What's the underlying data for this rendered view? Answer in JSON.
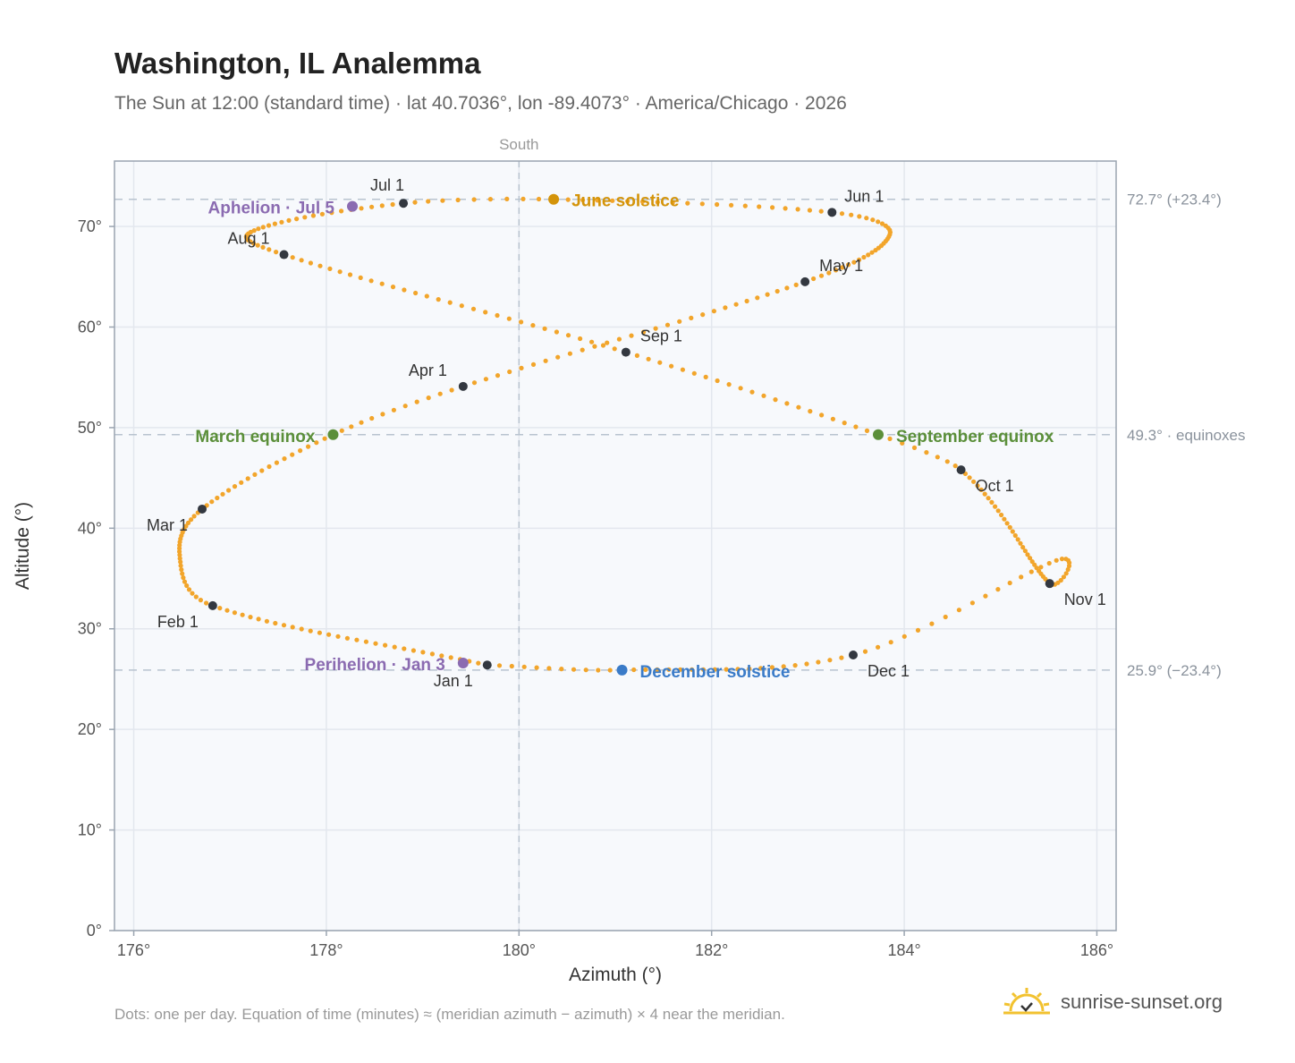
{
  "title": "Washington, IL Analemma",
  "subtitle": "The Sun at 12:00 (standard time) · lat 40.7036°, lon -89.4073° · America/Chicago · 2026",
  "footnote": "Dots: one per day. Equation of time (minutes) ≈ (meridian azimuth − azimuth) × 4 near the meridian.",
  "brand": "sunrise-sunset.org",
  "colors": {
    "path": "#f2a52b",
    "month": "#333840",
    "june": "#d4940a",
    "december": "#3a7bc8",
    "equinox": "#5b8f3a",
    "apsis": "#8b6bb1",
    "plot_bg": "#f7f9fc",
    "grid": "#e3e7ee",
    "ref": "#b8c3cf"
  },
  "chart_data": {
    "type": "scatter",
    "xlabel": "Azimuth (°)",
    "ylabel": "Altitude (°)",
    "xlim": [
      175.8,
      186.2
    ],
    "ylim": [
      0,
      76.5
    ],
    "xticks": [
      176,
      178,
      180,
      182,
      184,
      186
    ],
    "yticks": [
      0,
      10,
      20,
      30,
      40,
      50,
      60,
      70
    ],
    "xtick_labels": [
      "176°",
      "178°",
      "180°",
      "182°",
      "184°",
      "186°"
    ],
    "ytick_labels": [
      "0°",
      "10°",
      "20°",
      "30°",
      "40°",
      "50°",
      "60°",
      "70°"
    ],
    "meridian": {
      "azimuth": 180,
      "label": "South"
    },
    "reference_lines": [
      {
        "altitude": 72.7,
        "label": "72.7° (+23.4°)"
      },
      {
        "altitude": 49.3,
        "label": "49.3° · equinoxes"
      },
      {
        "altitude": 25.9,
        "label": "25.9° (−23.4°)"
      }
    ],
    "daily_path": {
      "description": "one point per day",
      "anchors": [
        [
          1,
          179.67,
          26.4
        ],
        [
          32,
          176.82,
          32.3
        ],
        [
          60,
          176.71,
          41.9
        ],
        [
          79,
          178.07,
          49.3
        ],
        [
          91,
          179.42,
          54.1
        ],
        [
          121,
          182.97,
          64.5
        ],
        [
          152,
          183.25,
          71.4
        ],
        [
          172,
          180.36,
          72.7
        ],
        [
          182,
          178.8,
          72.3
        ],
        [
          213,
          177.56,
          67.2
        ],
        [
          244,
          181.11,
          57.5
        ],
        [
          266,
          183.73,
          49.3
        ],
        [
          274,
          184.59,
          45.8
        ],
        [
          305,
          185.51,
          34.5
        ],
        [
          335,
          183.47,
          27.4
        ],
        [
          355,
          181.07,
          25.9
        ],
        [
          366,
          179.67,
          26.4
        ]
      ],
      "extremes": [
        [
          45,
          176.48,
          37.0
        ],
        [
          140,
          183.85,
          69.2
        ],
        [
          200,
          177.25,
          69.6
        ],
        [
          318,
          185.58,
          36.8
        ]
      ]
    },
    "month_markers": [
      {
        "label": "Jan 1",
        "az": 179.67,
        "alt": 26.4
      },
      {
        "label": "Feb 1",
        "az": 176.82,
        "alt": 32.3
      },
      {
        "label": "Mar 1",
        "az": 176.71,
        "alt": 41.9
      },
      {
        "label": "Apr 1",
        "az": 179.42,
        "alt": 54.1
      },
      {
        "label": "May 1",
        "az": 182.97,
        "alt": 64.5
      },
      {
        "label": "Jun 1",
        "az": 183.25,
        "alt": 71.4
      },
      {
        "label": "Jul 1",
        "az": 178.8,
        "alt": 72.3
      },
      {
        "label": "Aug 1",
        "az": 177.56,
        "alt": 67.2
      },
      {
        "label": "Sep 1",
        "az": 181.11,
        "alt": 57.5
      },
      {
        "label": "Oct 1",
        "az": 184.59,
        "alt": 45.8
      },
      {
        "label": "Nov 1",
        "az": 185.51,
        "alt": 34.5
      },
      {
        "label": "Dec 1",
        "az": 183.47,
        "alt": 27.4
      }
    ],
    "events": [
      {
        "label": "June solstice",
        "az": 180.36,
        "alt": 72.7,
        "color": "june"
      },
      {
        "label": "December solstice",
        "az": 181.07,
        "alt": 25.9,
        "color": "december"
      },
      {
        "label": "March equinox",
        "az": 178.07,
        "alt": 49.3,
        "color": "equinox"
      },
      {
        "label": "September equinox",
        "az": 183.73,
        "alt": 49.3,
        "color": "equinox"
      },
      {
        "label": "Aphelion · Jul 5",
        "az": 178.27,
        "alt": 72.0,
        "color": "apsis"
      },
      {
        "label": "Perihelion · Jan 3",
        "az": 179.42,
        "alt": 26.6,
        "color": "apsis"
      }
    ]
  }
}
